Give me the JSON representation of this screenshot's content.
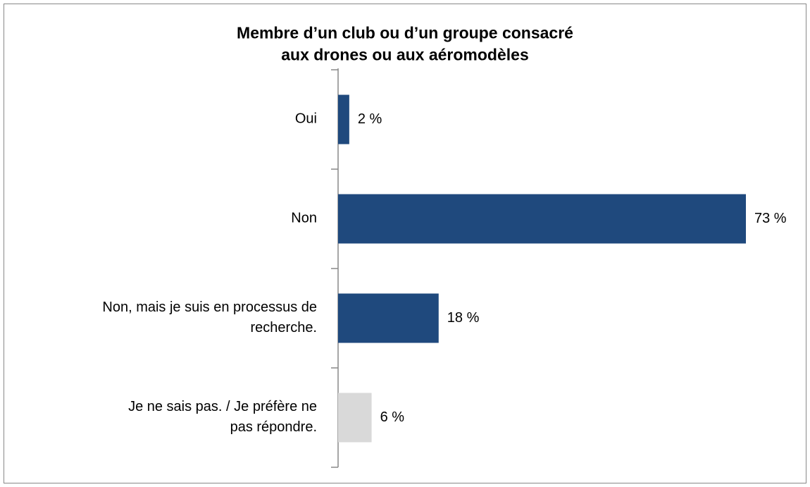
{
  "chart_data": {
    "type": "barh",
    "title": "Membre d’un club ou d’un groupe consacré aux drones ou aux aéromodèles",
    "categories": [
      "Oui",
      "Non",
      "Non, mais je suis en processus de recherche.",
      "Je ne sais pas. / Je préfère ne pas répondre."
    ],
    "values": [
      2,
      73,
      18,
      6
    ],
    "value_labels": [
      "2 %",
      "73 %",
      "18 %",
      "6 %"
    ],
    "colors": [
      "#1f497d",
      "#1f497d",
      "#1f497d",
      "#d9d9d9"
    ]
  }
}
